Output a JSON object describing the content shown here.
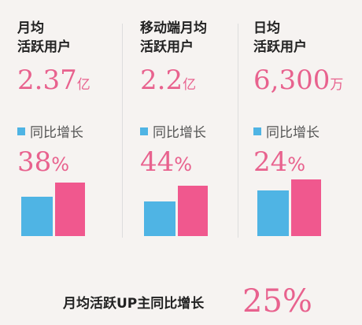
{
  "panels": [
    {
      "title_lines": [
        "月均",
        "活跃用户"
      ],
      "value": "2.37",
      "unit": "亿",
      "growth_label": "同比增长",
      "growth": "38",
      "growth_unit": "%"
    },
    {
      "title_lines": [
        "移动端月均",
        "活跃用户"
      ],
      "value": "2.2",
      "unit": "亿",
      "growth_label": "同比增长",
      "growth": "44",
      "growth_unit": "%"
    },
    {
      "title_lines": [
        "日均",
        "活跃用户"
      ],
      "value": "6,300",
      "unit": "万",
      "growth_label": "同比增长",
      "growth": "24",
      "growth_unit": "%"
    }
  ],
  "footer": {
    "label": "月均活跃UP主同比增长",
    "value": "25%"
  }
}
